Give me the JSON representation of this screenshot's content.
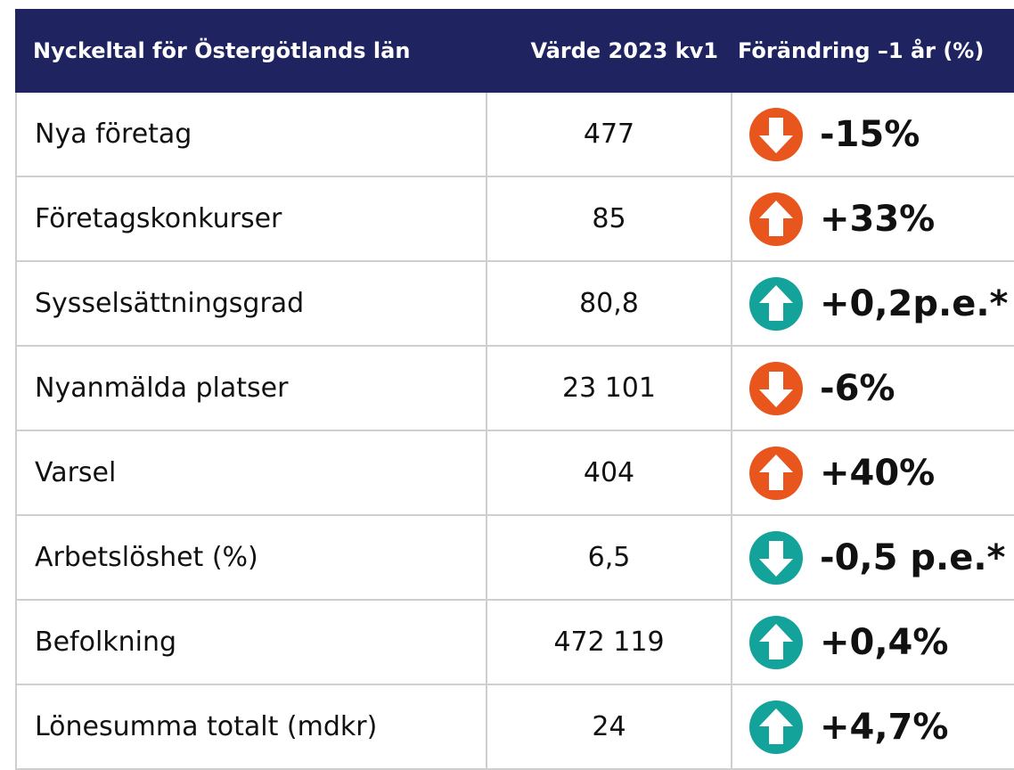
{
  "table": {
    "header": [
      "Nyckeltal för Östergötlands län",
      "Värde 2023 kv1",
      "Förändring –1 år (%)"
    ],
    "rows": [
      {
        "label": "Nya företag",
        "value": "477",
        "change": "-15%",
        "arrow": "down",
        "color": "#e8561e"
      },
      {
        "label": "Företagskonkurser",
        "value": "85",
        "change": "+33%",
        "arrow": "up",
        "color": "#e8561e"
      },
      {
        "label": "Sysselsättningsgrad",
        "value": "80,8",
        "change": "+0,2p.e.*",
        "arrow": "up",
        "color": "#14a39a"
      },
      {
        "label": "Nyanmälda platser",
        "value": "23 101",
        "change": "-6%",
        "arrow": "down",
        "color": "#e8561e"
      },
      {
        "label": "Varsel",
        "value": "404",
        "change": "+40%",
        "arrow": "up",
        "color": "#e8561e"
      },
      {
        "label": "Arbetslöshet (%)",
        "value": "6,5",
        "change": "-0,5 p.e.*",
        "arrow": "down",
        "color": "#14a39a"
      },
      {
        "label": "Befolkning",
        "value": "472 119",
        "change": "+0,4%",
        "arrow": "up",
        "color": "#14a39a"
      },
      {
        "label": "Lönesumma totalt (mdkr)",
        "value": "24",
        "change": "+4,7%",
        "arrow": "up",
        "color": "#14a39a"
      }
    ]
  }
}
